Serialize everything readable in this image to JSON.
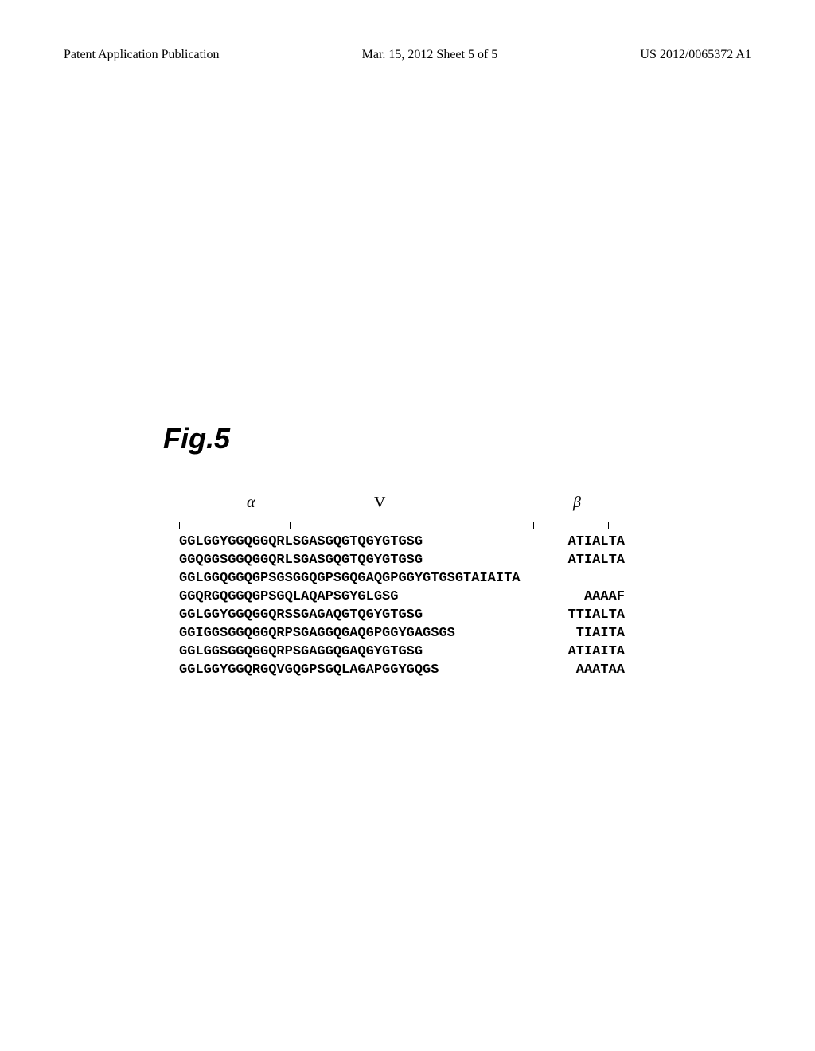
{
  "header": {
    "publication_type": "Patent Application Publication",
    "date_sheet": "Mar. 15, 2012  Sheet 5 of 5",
    "publication_number": "US 2012/0065372 A1"
  },
  "figure": {
    "label": "Fig.5",
    "columns": {
      "alpha": "α",
      "v": "V",
      "beta": "β"
    },
    "sequences": [
      {
        "left": "GGLGGYGGQGGQRLSGASGQGTQGYGTGSG",
        "right": "ATIALTA"
      },
      {
        "left": "GGQGGSGGQGGQRLSGASGQGTQGYGTGSG",
        "right": "ATIALTA"
      },
      {
        "left": "GGLGGQGGQGPSGSGGQGPSGQGAQGPGGYGTGSGTAIAITA",
        "right": ""
      },
      {
        "left": "GGQRGQGGQGPSGQLAQAPSGYGLGSG",
        "right": "AAAAF"
      },
      {
        "left": "GGLGGYGGQGGQRSSGAGAQGTQGYGTGSG",
        "right": "TTIALTA"
      },
      {
        "left": "GGIGGSGGQGGQRPSGAGGQGAQGPGGYGAGSGS",
        "right": "TIAITA"
      },
      {
        "left": "GGLGGSGGQGGQRPSGAGGQGAQGYGTGSG",
        "right": "ATIAITA"
      },
      {
        "left": "GGLGGYGGQRGQVGQGPSGQLAGAPGGYGQGS",
        "right": "AAATAA"
      }
    ]
  },
  "styling": {
    "background_color": "#ffffff",
    "text_color": "#000000",
    "header_fontsize": 16,
    "figure_label_fontsize": 36,
    "sequence_fontsize": 17,
    "column_header_fontsize": 20,
    "sequence_font": "Courier New",
    "header_font": "Times New Roman"
  }
}
